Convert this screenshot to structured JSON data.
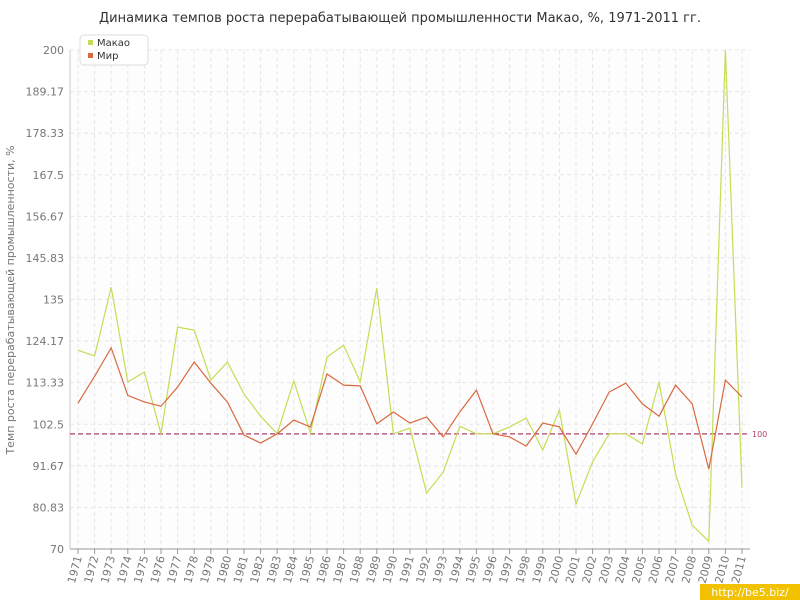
{
  "chart_data": {
    "type": "line",
    "title": "Динамика темпов роста перерабатывающей промышленности Макао, %, 1971-2011 гг.",
    "y_label": "Темп роста перерабатывающей промышленности, %",
    "categories": [
      "1971",
      "1972",
      "1973",
      "1974",
      "1975",
      "1976",
      "1977",
      "1978",
      "1979",
      "1980",
      "1981",
      "1982",
      "1983",
      "1984",
      "1985",
      "1986",
      "1987",
      "1988",
      "1989",
      "1990",
      "1991",
      "1992",
      "1993",
      "1994",
      "1995",
      "1996",
      "1997",
      "1998",
      "1999",
      "2000",
      "2001",
      "2002",
      "2003",
      "2004",
      "2005",
      "2006",
      "2007",
      "2008",
      "2009",
      "2010",
      "2011"
    ],
    "series": [
      {
        "name": "Макао",
        "color": "#c5dd55",
        "values": [
          121.8,
          120.3,
          138.2,
          113.5,
          116.1,
          100,
          127.8,
          127,
          114,
          118.7,
          110.4,
          104.6,
          100,
          113.8,
          100.2,
          120,
          123.1,
          113.5,
          138,
          100,
          101.5,
          84.6,
          90,
          102,
          100,
          100,
          101.8,
          104.1,
          95.8,
          106.2,
          81.7,
          92.7,
          100,
          100,
          97.4,
          113.5,
          89.5,
          76.2,
          72,
          200,
          86
        ]
      },
      {
        "name": "Мир",
        "color": "#d9683f",
        "values": [
          108,
          115,
          122.4,
          110,
          108.3,
          107.2,
          112.2,
          118.7,
          113.2,
          108.3,
          99.7,
          97.6,
          100,
          103.6,
          101.8,
          115.6,
          112.7,
          112.5,
          102.6,
          105.7,
          102.8,
          104.4,
          99.2,
          105.7,
          111.4,
          100,
          99.2,
          96.8,
          102.8,
          101.8,
          94.7,
          102.6,
          110.9,
          113.2,
          107.8,
          104.6,
          112.7,
          107.8,
          90.8,
          114,
          109.6
        ]
      }
    ],
    "ylim": [
      70,
      200
    ],
    "yticks": [
      70,
      80.83,
      91.67,
      102.5,
      113.33,
      124.17,
      135,
      145.83,
      156.67,
      167.5,
      178.33,
      189.17,
      200
    ],
    "reference_line": 100,
    "reference_color": "#b0406a",
    "grid": true,
    "legend": "top-left"
  },
  "watermark": "http://be5.biz/"
}
